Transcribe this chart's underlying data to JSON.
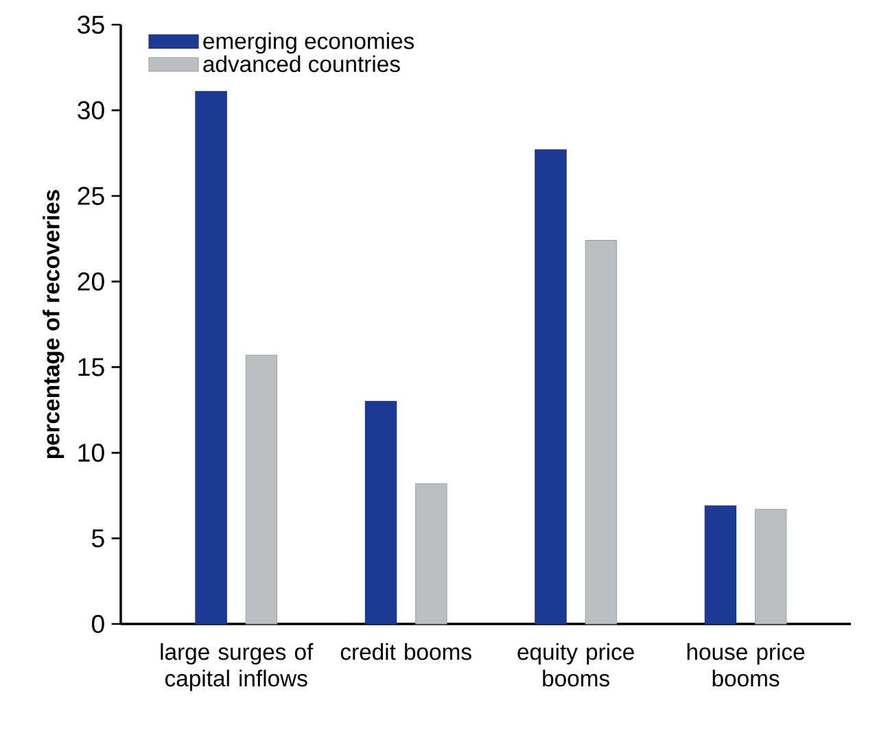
{
  "chart_data": {
    "type": "bar",
    "ylabel": "percentage of recoveries",
    "categories": [
      "large surges of capital inflows",
      "credit booms",
      "equity price booms",
      "house price booms"
    ],
    "series": [
      {
        "name": "emerging economies",
        "color": "#1c3a94",
        "values": [
          31.1,
          13.0,
          27.7,
          6.9
        ]
      },
      {
        "name": "advanced countries",
        "color": "#bdbec0",
        "values": [
          15.7,
          8.2,
          22.4,
          6.7
        ]
      }
    ],
    "ylim": [
      0,
      35
    ],
    "yticks": [
      0,
      5,
      10,
      15,
      20,
      25,
      30,
      35
    ],
    "grid": false,
    "legend": "top left"
  }
}
